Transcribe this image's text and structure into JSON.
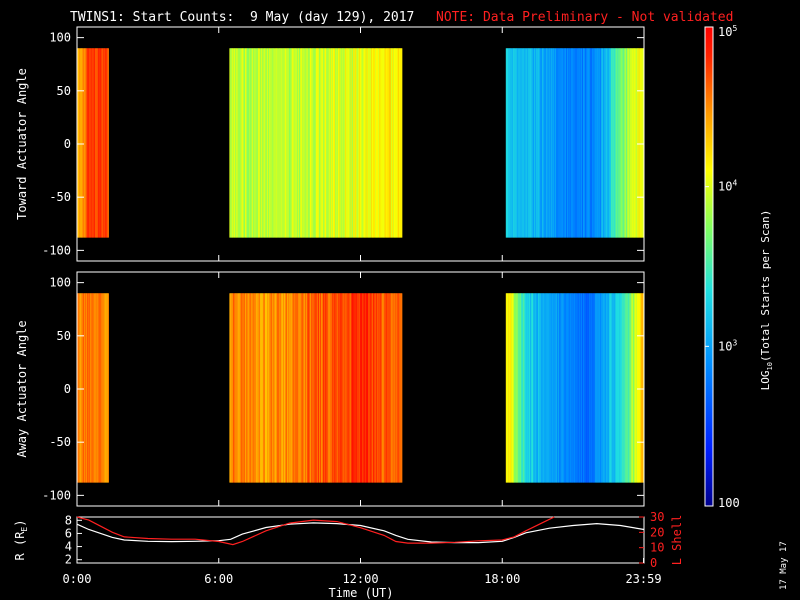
{
  "title": {
    "main": "TWINS1: Start Counts:  9 May (day 129), 2017",
    "note": "NOTE: Data Preliminary - Not validated"
  },
  "footer": {
    "date_stamp": "17 May 17"
  },
  "colors": {
    "background": "#000000",
    "axes": "#ffffff",
    "note": "#ff2020",
    "r_line": "#ffffff",
    "lshell_line": "#ff2020"
  },
  "chart_data": [
    {
      "type": "heatmap",
      "name": "toward",
      "ylabel": "Toward Actuator Angle",
      "ylim": [
        -110,
        110
      ],
      "yticks": [
        "100",
        "50",
        "0",
        "-50",
        "-100"
      ],
      "ytick_values": [
        100,
        50,
        0,
        -50,
        -100
      ],
      "data_ylim": [
        -88,
        90
      ],
      "xlim": [
        0,
        24
      ],
      "data_intervals_hours": [
        [
          0.0,
          1.33
        ],
        [
          6.45,
          13.75
        ],
        [
          18.15,
          24.0
        ]
      ],
      "log10_counts_profile": [
        {
          "t": 0.0,
          "v": 4.4
        },
        {
          "t": 0.4,
          "v": 4.65
        },
        {
          "t": 0.8,
          "v": 4.75
        },
        {
          "t": 1.33,
          "v": 4.75
        },
        {
          "t": 6.45,
          "v": 3.95
        },
        {
          "t": 8.0,
          "v": 3.9
        },
        {
          "t": 10.0,
          "v": 3.95
        },
        {
          "t": 12.0,
          "v": 4.05
        },
        {
          "t": 13.75,
          "v": 4.15
        },
        {
          "t": 18.15,
          "v": 3.3
        },
        {
          "t": 19.5,
          "v": 3.1
        },
        {
          "t": 21.0,
          "v": 2.8
        },
        {
          "t": 22.0,
          "v": 2.85
        },
        {
          "t": 23.0,
          "v": 3.6
        },
        {
          "t": 24.0,
          "v": 4.2
        }
      ]
    },
    {
      "type": "heatmap",
      "name": "away",
      "ylabel": "Away Actuator Angle",
      "ylim": [
        -110,
        110
      ],
      "yticks": [
        "100",
        "50",
        "0",
        "-50",
        "-100"
      ],
      "ytick_values": [
        100,
        50,
        0,
        -50,
        -100
      ],
      "data_ylim": [
        -88,
        90
      ],
      "xlim": [
        0,
        24
      ],
      "data_intervals_hours": [
        [
          0.0,
          1.33
        ],
        [
          6.45,
          13.75
        ],
        [
          18.15,
          24.0
        ]
      ],
      "log10_counts_profile": [
        {
          "t": 0.0,
          "v": 4.45
        },
        {
          "t": 0.5,
          "v": 4.6
        },
        {
          "t": 1.33,
          "v": 4.5
        },
        {
          "t": 6.45,
          "v": 4.55
        },
        {
          "t": 8.0,
          "v": 4.45
        },
        {
          "t": 10.0,
          "v": 4.6
        },
        {
          "t": 12.0,
          "v": 4.8
        },
        {
          "t": 13.75,
          "v": 4.55
        },
        {
          "t": 18.15,
          "v": 4.3
        },
        {
          "t": 19.0,
          "v": 3.3
        },
        {
          "t": 20.0,
          "v": 3.0
        },
        {
          "t": 21.5,
          "v": 2.75
        },
        {
          "t": 23.0,
          "v": 3.3
        },
        {
          "t": 24.0,
          "v": 4.3
        }
      ]
    },
    {
      "type": "line",
      "name": "orbit",
      "ylabel": "R (R",
      "ylabel_sub": "E",
      "ylabel_end": ")",
      "ylim": [
        1.5,
        8.5
      ],
      "yticks": [
        "8",
        "6",
        "4",
        "2"
      ],
      "ytick_values": [
        8,
        6,
        4,
        2
      ],
      "ylabel_right": "L Shell",
      "ylim_right": [
        0,
        30
      ],
      "yticks_right": [
        "30",
        "20",
        "10",
        "0"
      ],
      "ytick_values_right": [
        30,
        20,
        10,
        0
      ],
      "xlabel": "Time (UT)",
      "xlim": [
        0,
        24
      ],
      "xticks": [
        "0:00",
        "6:00",
        "12:00",
        "18:00",
        "23:59"
      ],
      "xtick_values": [
        0,
        6,
        12,
        18,
        23.98
      ],
      "series": [
        {
          "axis": "left",
          "color": "#ffffff",
          "x": [
            0,
            0.5,
            1,
            1.5,
            2,
            3,
            4,
            5,
            6,
            6.5,
            7,
            8,
            9,
            10,
            11,
            12,
            13,
            13.5,
            14,
            15,
            16,
            17,
            18,
            18.5,
            19,
            20,
            21,
            22,
            23,
            24
          ],
          "y": [
            7.4,
            6.6,
            6.0,
            5.4,
            5.0,
            4.8,
            4.75,
            4.8,
            4.9,
            5.1,
            5.9,
            6.9,
            7.4,
            7.6,
            7.5,
            7.2,
            6.4,
            5.7,
            5.1,
            4.7,
            4.6,
            4.6,
            4.8,
            5.4,
            6.1,
            6.8,
            7.2,
            7.5,
            7.2,
            6.6
          ]
        },
        {
          "axis": "right",
          "color": "#ff2020",
          "x": [
            0,
            0.5,
            1,
            1.5,
            2,
            3,
            4,
            5,
            6,
            6.6,
            7,
            8,
            9,
            10,
            11,
            12,
            13,
            13.5,
            14,
            15,
            16,
            17,
            18,
            18.5,
            19,
            19.8,
            20.2
          ],
          "y": [
            30,
            28,
            24,
            20,
            17,
            16,
            15.5,
            15.5,
            14,
            12,
            14,
            21,
            26,
            28,
            27,
            23,
            18,
            14,
            13,
            13,
            13.5,
            14.5,
            15,
            17,
            21,
            27,
            31
          ]
        }
      ]
    },
    {
      "type": "colorbar",
      "name": "counts-colorbar",
      "scale": "log",
      "range": [
        100,
        100000
      ],
      "ticks": [
        "10",
        "10",
        "10",
        "100"
      ],
      "tick_exponents": [
        "5",
        "4",
        "3",
        ""
      ],
      "tick_values": [
        100000,
        10000,
        1000,
        100
      ],
      "label_prefix": "LOG",
      "label_sub": "10",
      "label_suffix": "(Total Starts per Scan)"
    }
  ]
}
